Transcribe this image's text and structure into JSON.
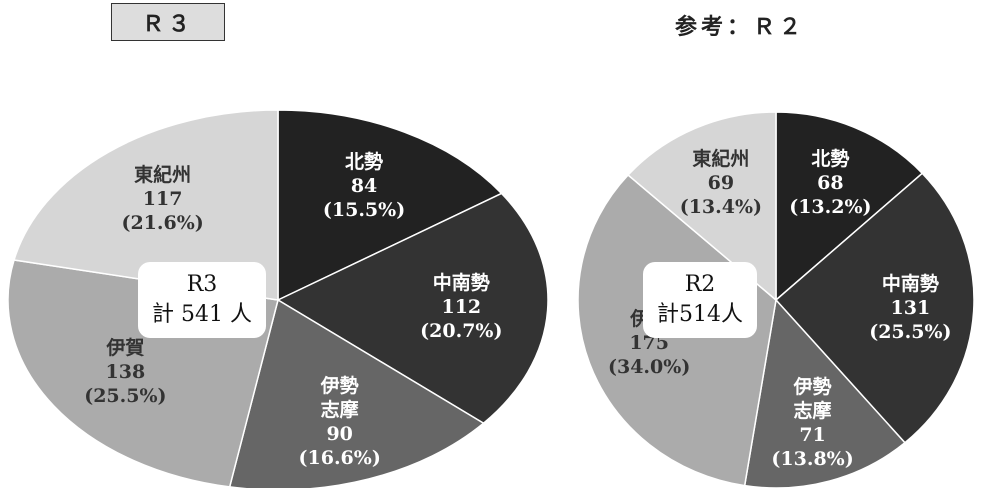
{
  "chart_data": [
    {
      "type": "pie",
      "title": "Ｒ３",
      "center_title": "R3",
      "center_total": "計 541 人",
      "categories": [
        "北勢",
        "中南勢",
        "伊勢志摩",
        "伊賀",
        "東紀州"
      ],
      "values": [
        84,
        112,
        90,
        138,
        117
      ],
      "percent_labels": [
        "(15.5%)",
        "(20.7%)",
        "(16.6%)",
        "(25.5%)",
        "(21.6%)"
      ],
      "colors": [
        "#222222",
        "#333333",
        "#666666",
        "#ababab",
        "#d6d6d6"
      ]
    },
    {
      "type": "pie",
      "title": "参考：Ｒ２",
      "center_title": "R2",
      "center_total": "計514人",
      "categories": [
        "北勢",
        "中南勢",
        "伊勢志摩",
        "伊賀",
        "東紀州"
      ],
      "values": [
        68,
        131,
        71,
        175,
        69
      ],
      "percent_labels": [
        "(13.2%)",
        "(25.5%)",
        "(13.8%)",
        "(34.0%)",
        "(13.4%)"
      ],
      "colors": [
        "#222222",
        "#333333",
        "#666666",
        "#ababab",
        "#d6d6d6"
      ]
    }
  ]
}
